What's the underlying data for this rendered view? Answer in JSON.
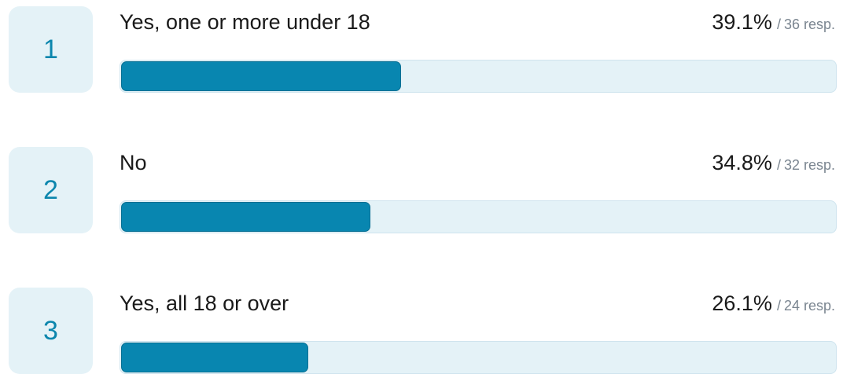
{
  "chart_data": {
    "type": "bar",
    "orientation": "horizontal",
    "categories": [
      "Yes, one or more under 18",
      "No",
      "Yes, all 18 or over"
    ],
    "values": [
      39.1,
      34.8,
      26.1
    ],
    "responses": [
      36,
      32,
      24
    ],
    "value_unit": "%",
    "xlim": [
      0,
      100
    ],
    "ranks": [
      "1",
      "2",
      "3"
    ],
    "pct_labels": [
      "39.1%",
      "34.8%",
      "26.1%"
    ],
    "resp_labels": [
      "36 resp.",
      "32 resp.",
      "24 resp."
    ],
    "separator": "/",
    "colors": {
      "bar_fill": "#0886b0",
      "track": "#e4f2f7",
      "rank_box": "#e4f2f7",
      "rank_text": "#0b86ad"
    }
  }
}
